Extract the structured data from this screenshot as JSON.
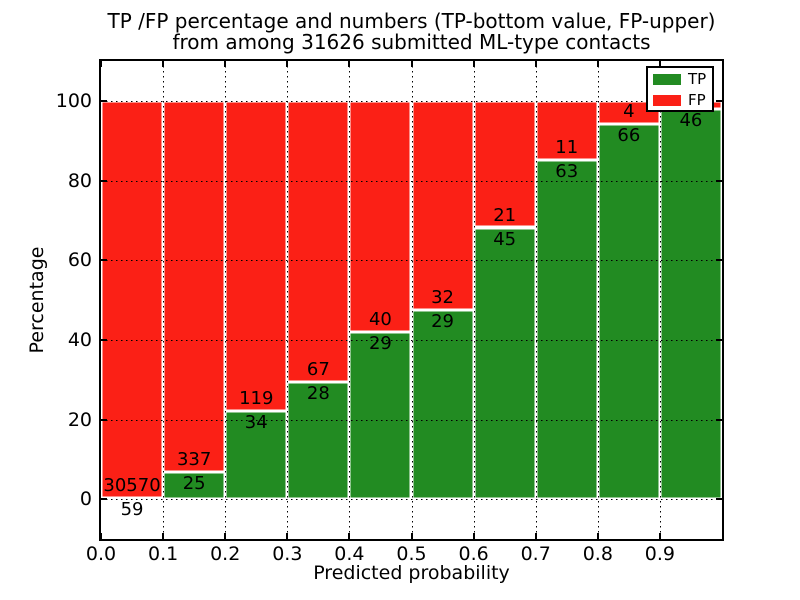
{
  "chart_data": {
    "type": "bar",
    "stacked": true,
    "title_line1": "TP /FP percentage and numbers (TP-bottom value, FP-upper)",
    "title_line2": "from among 31626 submitted ML-type contacts",
    "total_submitted": 31626,
    "xlabel": "Predicted probability",
    "ylabel": "Percentage",
    "xlim": [
      0.0,
      1.0
    ],
    "ylim": [
      -10,
      110
    ],
    "x_ticks": [
      "0.0",
      "0.1",
      "0.2",
      "0.3",
      "0.4",
      "0.5",
      "0.6",
      "0.7",
      "0.8",
      "0.9"
    ],
    "y_ticks": [
      "0",
      "20",
      "40",
      "60",
      "80",
      "100"
    ],
    "y_tick_values": [
      0,
      20,
      40,
      60,
      80,
      100
    ],
    "grid": "dotted black, drawn above bars",
    "colors": {
      "tp": "#228B22",
      "fp": "#FB2016"
    },
    "legend": {
      "position": "upper right",
      "entries": [
        {
          "label": "TP",
          "color": "#228B22"
        },
        {
          "label": "FP",
          "color": "#FB2016"
        }
      ]
    },
    "bars": [
      {
        "x_start": 0.0,
        "x_end": 0.1,
        "tp_pct": 0.2,
        "fp_pct": 99.8,
        "tp_label": "59",
        "fp_label": "30570"
      },
      {
        "x_start": 0.1,
        "x_end": 0.2,
        "tp_pct": 6.9,
        "fp_pct": 93.1,
        "tp_label": "25",
        "fp_label": "337"
      },
      {
        "x_start": 0.2,
        "x_end": 0.3,
        "tp_pct": 22.2,
        "fp_pct": 77.8,
        "tp_label": "34",
        "fp_label": "119"
      },
      {
        "x_start": 0.3,
        "x_end": 0.4,
        "tp_pct": 29.5,
        "fp_pct": 70.5,
        "tp_label": "28",
        "fp_label": "67"
      },
      {
        "x_start": 0.4,
        "x_end": 0.5,
        "tp_pct": 42.0,
        "fp_pct": 58.0,
        "tp_label": "29",
        "fp_label": "40"
      },
      {
        "x_start": 0.5,
        "x_end": 0.6,
        "tp_pct": 47.5,
        "fp_pct": 52.5,
        "tp_label": "29",
        "fp_label": "32"
      },
      {
        "x_start": 0.6,
        "x_end": 0.7,
        "tp_pct": 68.2,
        "fp_pct": 31.8,
        "tp_label": "45",
        "fp_label": "21"
      },
      {
        "x_start": 0.7,
        "x_end": 0.8,
        "tp_pct": 85.1,
        "fp_pct": 14.9,
        "tp_label": "63",
        "fp_label": "11"
      },
      {
        "x_start": 0.8,
        "x_end": 0.9,
        "tp_pct": 94.3,
        "fp_pct": 5.7,
        "tp_label": "66",
        "fp_label": "4"
      },
      {
        "x_start": 0.9,
        "x_end": 1.0,
        "tp_pct": 97.9,
        "fp_pct": 2.1,
        "tp_label": "46",
        "fp_label": ""
      }
    ]
  }
}
